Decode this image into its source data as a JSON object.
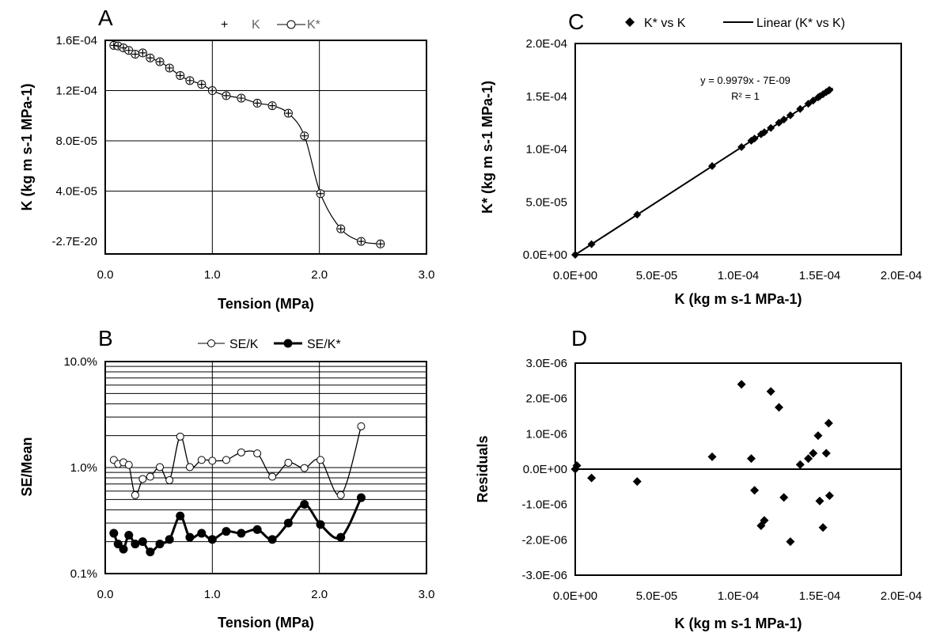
{
  "chart_data": [
    {
      "panel": "A",
      "type": "scatter",
      "series": [
        {
          "name": "K",
          "marker": "plus",
          "x": [
            0.08,
            0.12,
            0.17,
            0.22,
            0.28,
            0.35,
            0.42,
            0.51,
            0.6,
            0.7,
            0.79,
            0.9,
            1.0,
            1.13,
            1.27,
            1.42,
            1.56,
            1.71,
            1.86,
            2.01,
            2.2,
            2.39,
            2.57
          ],
          "y": [
            0.000156,
            0.0001555,
            0.000154,
            0.000152,
            0.000149,
            0.00015,
            0.000146,
            0.000143,
            0.000138,
            0.000132,
            0.000128,
            0.000125,
            0.00012,
            0.000116,
            0.000114,
            0.00011,
            0.000108,
            0.000102,
            8.4e-05,
            3.8e-05,
            1e-05,
            0,
            -2e-06
          ]
        },
        {
          "name": "K*",
          "marker": "open-circle",
          "x": [
            0.08,
            0.12,
            0.17,
            0.22,
            0.28,
            0.35,
            0.42,
            0.51,
            0.6,
            0.7,
            0.79,
            0.9,
            1.0,
            1.13,
            1.27,
            1.42,
            1.56,
            1.71,
            1.86,
            2.01,
            2.2,
            2.39,
            2.57
          ],
          "y": [
            0.000156,
            0.0001555,
            0.000154,
            0.000152,
            0.000149,
            0.00015,
            0.000146,
            0.000143,
            0.000138,
            0.000132,
            0.000128,
            0.000125,
            0.00012,
            0.000116,
            0.000114,
            0.00011,
            0.000108,
            0.000102,
            8.4e-05,
            3.8e-05,
            1e-05,
            0,
            -2e-06
          ]
        }
      ],
      "xlim": [
        0,
        3
      ],
      "ylim": [
        -1e-05,
        0.00016
      ],
      "x_ticks": [
        "0.0",
        "1.0",
        "2.0",
        "3.0"
      ],
      "y_ticks": [
        "1.6E-04",
        "1.2E-04",
        "8.0E-05",
        "4.0E-05",
        "-2.7E-20"
      ],
      "xlabel": "Tension (MPa)",
      "ylabel": "K (kg m s-1 MPa-1)",
      "legend_position": "top"
    },
    {
      "panel": "B",
      "type": "line",
      "y_scale": "log",
      "series": [
        {
          "name": "SE/K",
          "marker": "open-circle",
          "x": [
            0.08,
            0.12,
            0.17,
            0.22,
            0.28,
            0.35,
            0.42,
            0.51,
            0.6,
            0.7,
            0.79,
            0.9,
            1.0,
            1.13,
            1.27,
            1.42,
            1.56,
            1.71,
            1.86,
            2.01,
            2.2,
            2.39
          ],
          "y": [
            0.0118,
            0.0108,
            0.0112,
            0.0106,
            0.0055,
            0.0078,
            0.0082,
            0.0101,
            0.0076,
            0.0196,
            0.0101,
            0.0118,
            0.0116,
            0.0118,
            0.0139,
            0.0136,
            0.0082,
            0.0111,
            0.0099,
            0.0118,
            0.0055,
            0.0245
          ]
        },
        {
          "name": "SE/K*",
          "marker": "filled-circle",
          "x": [
            0.08,
            0.12,
            0.17,
            0.22,
            0.28,
            0.35,
            0.42,
            0.51,
            0.6,
            0.7,
            0.79,
            0.9,
            1.0,
            1.13,
            1.27,
            1.42,
            1.56,
            1.71,
            1.86,
            2.01,
            2.2,
            2.39
          ],
          "y": [
            0.0024,
            0.0019,
            0.0017,
            0.0023,
            0.0019,
            0.002,
            0.0016,
            0.0019,
            0.0021,
            0.0035,
            0.0022,
            0.0024,
            0.0021,
            0.0025,
            0.0024,
            0.0026,
            0.0021,
            0.003,
            0.0045,
            0.0029,
            0.0022,
            0.0052
          ]
        }
      ],
      "xlim": [
        0,
        3
      ],
      "ylim": [
        0.001,
        0.1
      ],
      "x_ticks": [
        "0.0",
        "1.0",
        "2.0",
        "3.0"
      ],
      "y_ticks": [
        "10.0%",
        "1.0%",
        "0.1%"
      ],
      "xlabel": "Tension (MPa)",
      "ylabel": "SE/Mean",
      "legend_position": "top"
    },
    {
      "panel": "C",
      "type": "scatter",
      "series": [
        {
          "name": "K* vs K",
          "marker": "filled-diamond",
          "x": [
            0,
            1e-05,
            3.8e-05,
            8.4e-05,
            0.000102,
            0.000108,
            0.00011,
            0.000114,
            0.000116,
            0.00012,
            0.000125,
            0.000128,
            0.000132,
            0.000138,
            0.000143,
            0.000146,
            0.000149,
            0.00015,
            0.000152,
            0.000154,
            0.0001555,
            0.000156
          ],
          "y": [
            0,
            1e-05,
            3.8e-05,
            8.4e-05,
            0.000102,
            0.000108,
            0.00011,
            0.000114,
            0.000116,
            0.00012,
            0.000125,
            0.000128,
            0.000132,
            0.000138,
            0.000143,
            0.000146,
            0.000149,
            0.00015,
            0.000152,
            0.000154,
            0.0001555,
            0.000156
          ]
        },
        {
          "name": "Linear (K* vs K)",
          "marker": "line",
          "slope": 0.9979,
          "intercept": -7e-09,
          "x_range": [
            0,
            0.000158
          ]
        }
      ],
      "xlim": [
        0,
        0.0002
      ],
      "ylim": [
        0,
        0.0002
      ],
      "x_ticks": [
        "0.0E+00",
        "5.0E-05",
        "1.0E-04",
        "1.5E-04",
        "2.0E-04"
      ],
      "y_ticks": [
        "2.0E-04",
        "1.5E-04",
        "1.0E-04",
        "5.0E-05",
        "0.0E+00"
      ],
      "xlabel": "K (kg m s-1 MPa-1)",
      "ylabel": "K* (kg m s-1 MPa-1)",
      "annotation_equation": "y = 0.9979x - 7E-09",
      "annotation_r2": "R² = 1",
      "legend_position": "top"
    },
    {
      "panel": "D",
      "type": "scatter",
      "series": [
        {
          "name": "Residuals",
          "marker": "filled-diamond",
          "x": [
            0,
            1e-06,
            1e-05,
            3.8e-05,
            8.4e-05,
            0.000102,
            0.000108,
            0.00011,
            0.000114,
            0.000116,
            0.00012,
            0.000125,
            0.000128,
            0.000132,
            0.000138,
            0.000143,
            0.000146,
            0.000149,
            0.00015,
            0.000152,
            0.000154,
            0.0001555,
            0.000156
          ],
          "y": [
            0,
            1e-07,
            -2.5e-07,
            -3.5e-07,
            3.5e-07,
            2.4e-06,
            3e-07,
            -6e-07,
            -1.6e-06,
            -1.45e-06,
            2.2e-06,
            1.75e-06,
            -8e-07,
            -2.05e-06,
            1.3e-07,
            3e-07,
            4.5e-07,
            9.5e-07,
            -9e-07,
            -1.65e-06,
            4.5e-07,
            1.3e-06,
            -7.5e-07
          ]
        }
      ],
      "xlim": [
        0,
        0.0002
      ],
      "ylim": [
        -3e-06,
        3e-06
      ],
      "x_ticks": [
        "0.0E+00",
        "5.0E-05",
        "1.0E-04",
        "1.5E-04",
        "2.0E-04"
      ],
      "y_ticks": [
        "3.0E-06",
        "2.0E-06",
        "1.0E-06",
        "0.0E+00",
        "-1.0E-06",
        "-2.0E-06",
        "-3.0E-06"
      ],
      "xlabel": "K (kg m s-1 MPa-1)",
      "ylabel": "Residuals"
    }
  ],
  "panel_letters": [
    "A",
    "B",
    "C",
    "D"
  ],
  "legend_a": {
    "k": "K",
    "kstar": "K*"
  },
  "legend_b": {
    "sek": "SE/K",
    "sekstar": "SE/K*"
  },
  "legend_c": {
    "scatter": "K* vs K",
    "linear": "Linear (K* vs K)"
  }
}
